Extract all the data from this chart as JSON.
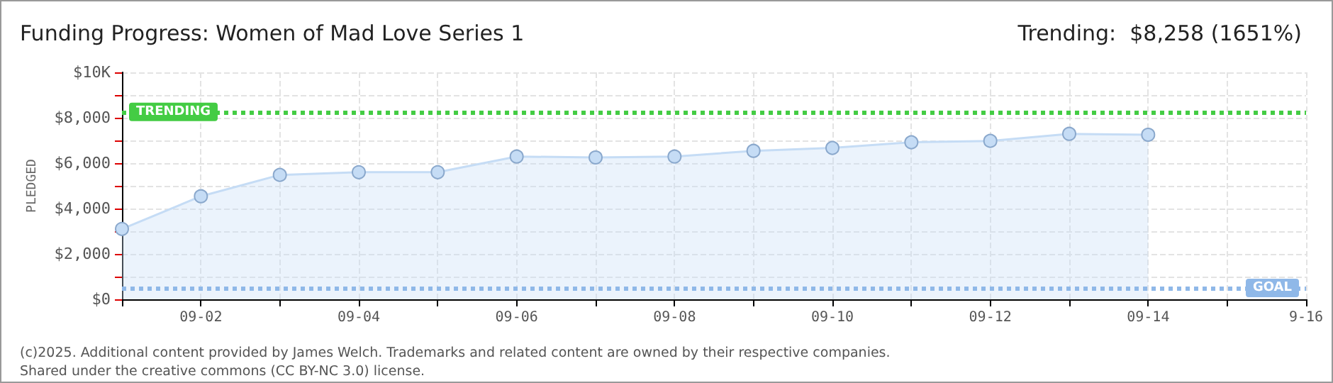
{
  "chart_data": {
    "type": "area",
    "title": "Funding Progress: Women of Mad Love Series 1",
    "subtitle": "Trending:  $8,258 (1651%)",
    "ylabel": "PLEDGED",
    "x": [
      "--09-01",
      "--09-02",
      "--09-03",
      "--09-04",
      "--09-05",
      "--09-06",
      "--09-07",
      "--09-08",
      "--09-09",
      "--09-10",
      "--09-11",
      "--09-12",
      "--09-13",
      "--09-14"
    ],
    "series": [
      {
        "color": "#c5dcf5",
        "values": [
          3100,
          4540,
          5480,
          5600,
          5600,
          6290,
          6250,
          6290,
          6540,
          6670,
          6920,
          6980,
          7290,
          7250
        ]
      }
    ],
    "xlim": [
      "--09-01",
      "--09-16"
    ],
    "xticks": [
      {
        "value": "--09-01",
        "label": null
      },
      {
        "value": "--09-02",
        "label": "09-02"
      },
      {
        "value": "--09-03",
        "label": null
      },
      {
        "value": "--09-04",
        "label": "09-04"
      },
      {
        "value": "--09-05",
        "label": null
      },
      {
        "value": "--09-06",
        "label": "09-06"
      },
      {
        "value": "--09-07",
        "label": null
      },
      {
        "value": "--09-08",
        "label": "09-08"
      },
      {
        "value": "--09-09",
        "label": null
      },
      {
        "value": "--09-10",
        "label": "09-10"
      },
      {
        "value": "--09-11",
        "label": null
      },
      {
        "value": "--09-12",
        "label": "09-12"
      },
      {
        "value": "--09-13",
        "label": null
      },
      {
        "value": "--09-14",
        "label": "09-14"
      },
      {
        "value": "--09-15",
        "label": null
      },
      {
        "value": "--09-16",
        "label": "9-16"
      }
    ],
    "ylim": [
      0,
      10000
    ],
    "yticks": [
      {
        "value": 0,
        "label": "$0"
      },
      {
        "value": 1000,
        "label": null
      },
      {
        "value": 2000,
        "label": "$2,000"
      },
      {
        "value": 3000,
        "label": null
      },
      {
        "value": 4000,
        "label": "$4,000"
      },
      {
        "value": 5000,
        "label": null
      },
      {
        "value": 6000,
        "label": "$6,000"
      },
      {
        "value": 7000,
        "label": null
      },
      {
        "value": 8000,
        "label": "$8,000"
      },
      {
        "value": 9000,
        "label": null
      },
      {
        "value": 10000,
        "label": "$10K"
      }
    ],
    "ref_lines": [
      {
        "axis": "y",
        "value": 8258,
        "label": "TRENDING",
        "color": "#44cc44",
        "line_style": "dotted"
      },
      {
        "axis": "y",
        "value": 500,
        "label": "GOAL",
        "color": "#8fb8e8",
        "line_style": "dotted"
      }
    ],
    "grid": true,
    "marker": "circle",
    "annotations": [
      "(c)2025. Additional content provided by James Welch. Trademarks and related content are owned by their respective companies.",
      "Shared under the creative commons (CC BY-NC 3.0) license."
    ]
  }
}
